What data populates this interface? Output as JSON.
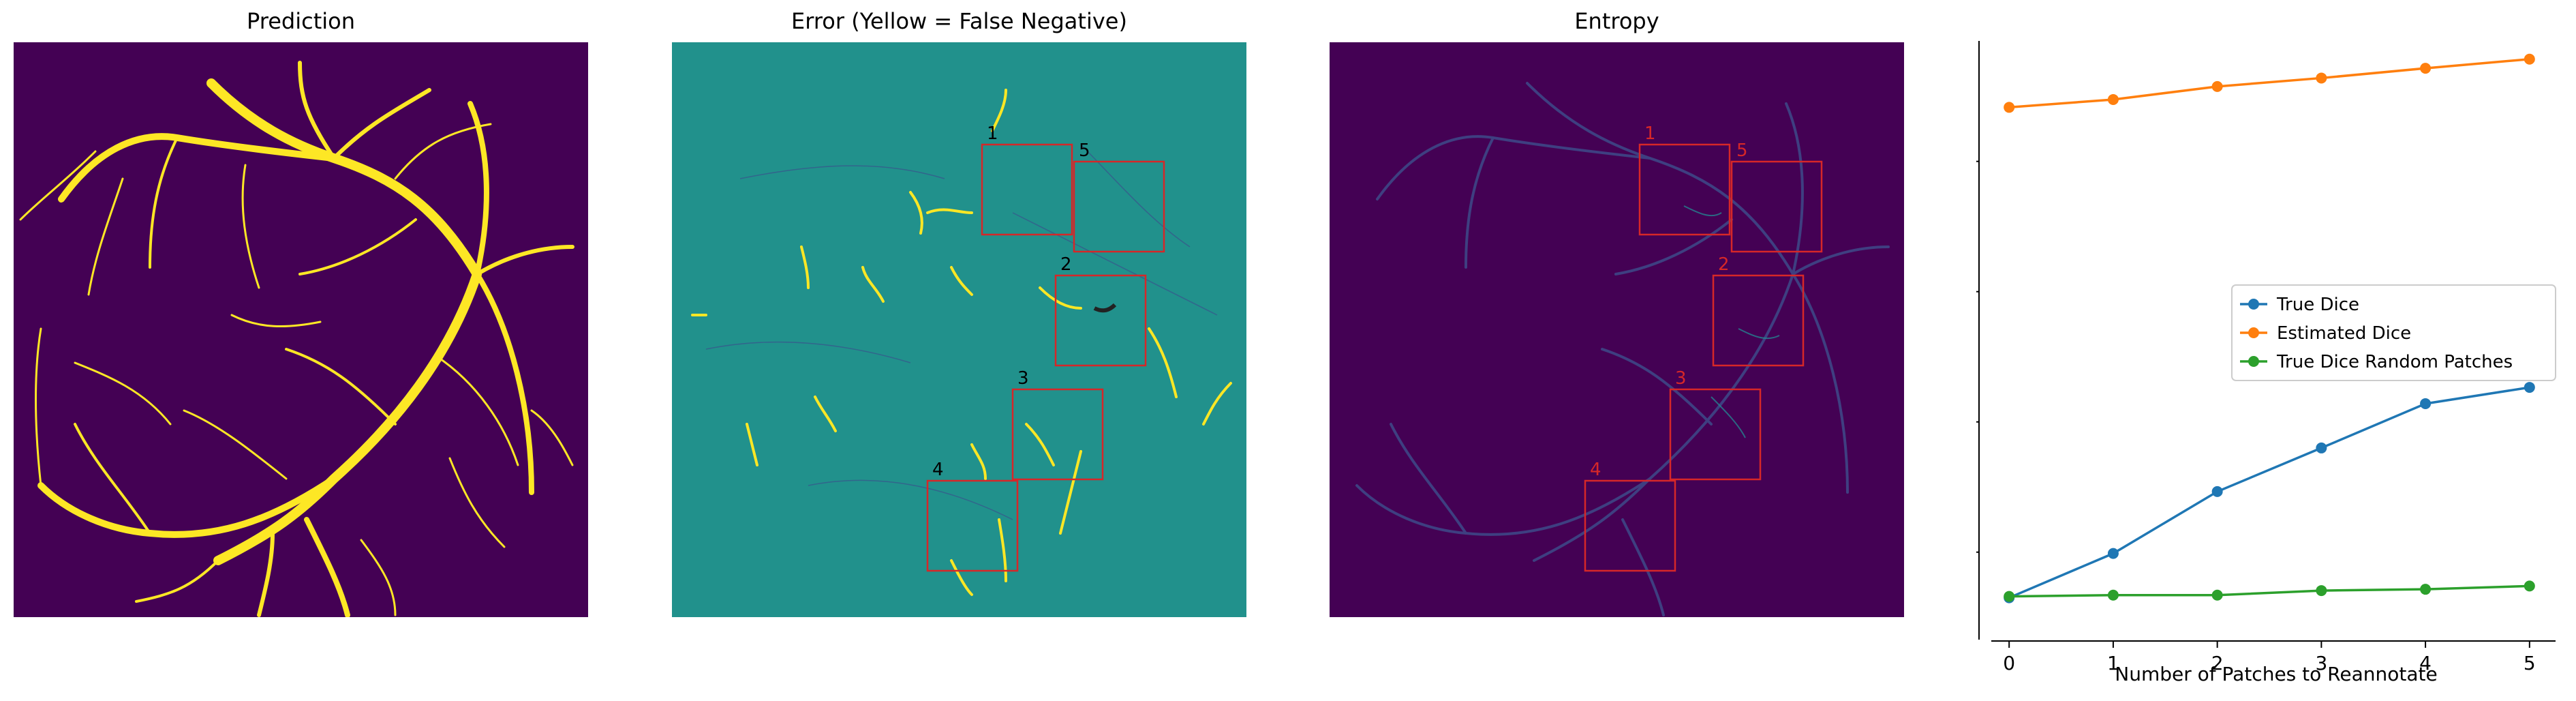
{
  "panels": {
    "prediction": {
      "title": "Prediction"
    },
    "error": {
      "title": "Error (Yellow = False Negative)"
    },
    "entropy": {
      "title": "Entropy"
    }
  },
  "colors": {
    "viridis_dark": "#440154",
    "viridis_mid": "#21918c",
    "viridis_yellow": "#fde725",
    "box_red": "#d62728",
    "true_dice": "#1f77b4",
    "estimated_dice": "#ff7f0e",
    "random_dice": "#2ca02c"
  },
  "patches": [
    {
      "label": "1"
    },
    {
      "label": "5"
    },
    {
      "label": "2"
    },
    {
      "label": "3"
    },
    {
      "label": "4"
    }
  ],
  "chart_data": {
    "type": "line",
    "xlabel": "Number of Patches to Reannotate",
    "ylabel": "",
    "title": "",
    "x": [
      0,
      1,
      2,
      3,
      4,
      5
    ],
    "xticks": [
      "0",
      "1",
      "2",
      "3",
      "4",
      "5"
    ],
    "yticks": [
      "0.90",
      "0.92",
      "0.94",
      "0.96"
    ],
    "xlim": [
      -0.25,
      5.25
    ],
    "ylim": [
      0.8895,
      0.9785
    ],
    "grid": false,
    "legend_position": "center-right",
    "series": [
      {
        "name": "True Dice",
        "color": "#1f77b4",
        "values": [
          0.893,
          0.8998,
          0.9093,
          0.916,
          0.9228,
          0.9253
        ]
      },
      {
        "name": "Estimated Dice",
        "color": "#ff7f0e",
        "values": [
          0.9683,
          0.9695,
          0.9715,
          0.9728,
          0.9743,
          0.9757
        ]
      },
      {
        "name": "True Dice Random Patches",
        "color": "#2ca02c",
        "values": [
          0.8932,
          0.8934,
          0.8934,
          0.8941,
          0.8943,
          0.8948
        ]
      }
    ]
  }
}
